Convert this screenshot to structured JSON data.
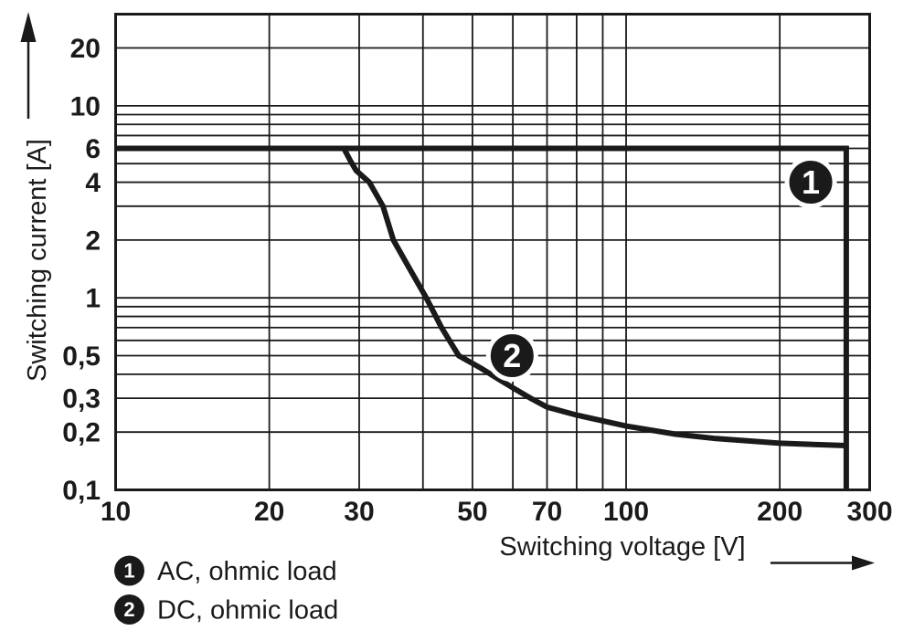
{
  "figure": {
    "background": "#ffffff",
    "ink_color": "#1a1a1a"
  },
  "chart_data": {
    "type": "line",
    "title": "",
    "x_axis": {
      "label": "Switching voltage [V]",
      "scale": "log",
      "min": 10,
      "max": 300,
      "ticks": [
        {
          "value": 10,
          "label": "10"
        },
        {
          "value": 20,
          "label": "20"
        },
        {
          "value": 30,
          "label": "30"
        },
        {
          "value": 50,
          "label": "50"
        },
        {
          "value": 70,
          "label": "70"
        },
        {
          "value": 100,
          "label": "100"
        },
        {
          "value": 200,
          "label": "200"
        },
        {
          "value": 300,
          "label": "300"
        }
      ],
      "gridlines": [
        20,
        30,
        40,
        50,
        60,
        70,
        80,
        90,
        100,
        200
      ]
    },
    "y_axis": {
      "label": "Switching current [A]",
      "scale": "log",
      "min": 0.1,
      "max": 30,
      "ticks": [
        {
          "value": 20,
          "label": "20"
        },
        {
          "value": 10,
          "label": "10"
        },
        {
          "value": 6,
          "label": "6"
        },
        {
          "value": 4,
          "label": "4"
        },
        {
          "value": 2,
          "label": "2"
        },
        {
          "value": 1,
          "label": "1"
        },
        {
          "value": 0.5,
          "label": "0,5"
        },
        {
          "value": 0.3,
          "label": "0,3"
        },
        {
          "value": 0.2,
          "label": "0,2"
        },
        {
          "value": 0.1,
          "label": "0,1"
        }
      ],
      "gridlines": [
        0.2,
        0.3,
        0.4,
        0.5,
        0.6,
        0.7,
        0.8,
        0.9,
        1,
        2,
        3,
        4,
        5,
        6,
        7,
        8,
        9,
        10,
        20
      ]
    },
    "series": [
      {
        "id": "1",
        "name": "AC, ohmic load",
        "points": [
          [
            10,
            6
          ],
          [
            270,
            6
          ],
          [
            270,
            0.1
          ]
        ]
      },
      {
        "id": "2",
        "name": "DC, ohmic load",
        "points": [
          [
            28,
            6
          ],
          [
            28.8,
            5.2
          ],
          [
            29.6,
            4.6
          ],
          [
            31.4,
            4
          ],
          [
            33.4,
            3
          ],
          [
            35,
            2
          ],
          [
            37.2,
            1.5
          ],
          [
            40.6,
            1
          ],
          [
            43.5,
            0.7
          ],
          [
            47,
            0.5
          ],
          [
            52,
            0.43
          ],
          [
            56,
            0.38
          ],
          [
            60,
            0.34
          ],
          [
            65,
            0.3
          ],
          [
            70,
            0.27
          ],
          [
            80,
            0.245
          ],
          [
            100,
            0.215
          ],
          [
            125,
            0.195
          ],
          [
            150,
            0.185
          ],
          [
            200,
            0.175
          ],
          [
            240,
            0.172
          ],
          [
            270,
            0.17
          ]
        ]
      }
    ],
    "marker_labels": [
      {
        "id": "1",
        "text": "1",
        "at": [
          230,
          4
        ]
      },
      {
        "id": "2",
        "text": "2",
        "at": [
          59.8,
          0.5
        ]
      }
    ],
    "legend": [
      {
        "id": "1",
        "symbol": "1",
        "label": "AC, ohmic load"
      },
      {
        "id": "2",
        "symbol": "2",
        "label": "DC, ohmic load"
      }
    ]
  }
}
